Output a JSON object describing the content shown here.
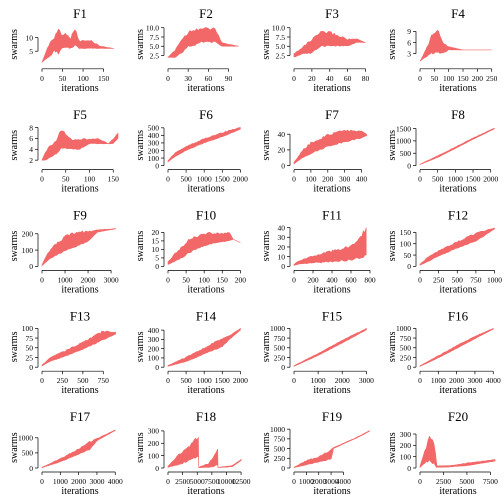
{
  "chart_data": [
    {
      "type": "area",
      "title": "F1",
      "xlabel": "iterations",
      "ylabel": "swarms",
      "xlim": [
        0,
        185
      ],
      "ylim": [
        0,
        15
      ],
      "xticks": [
        0,
        50,
        100,
        150
      ],
      "yticks": [
        5,
        10
      ],
      "x_end": 175,
      "band": [
        [
          0,
          1,
          1
        ],
        [
          10,
          2,
          5
        ],
        [
          20,
          3,
          9
        ],
        [
          30,
          5,
          10
        ],
        [
          40,
          4,
          14
        ],
        [
          50,
          6,
          11
        ],
        [
          60,
          6,
          12
        ],
        [
          70,
          6,
          10
        ],
        [
          80,
          7,
          14
        ],
        [
          90,
          6,
          9
        ],
        [
          110,
          6,
          9
        ],
        [
          120,
          6,
          9
        ],
        [
          140,
          6,
          7
        ],
        [
          175,
          6,
          6
        ]
      ]
    },
    {
      "type": "area",
      "title": "F2",
      "xlabel": "iterations",
      "ylabel": "swarms",
      "xlim": [
        0,
        113
      ],
      "ylim": [
        0,
        11
      ],
      "xticks": [
        0,
        30,
        60,
        90
      ],
      "yticks": [
        2.5,
        5.0,
        7.5,
        10.0
      ],
      "x_end": 105,
      "band": [
        [
          0,
          2,
          2
        ],
        [
          10,
          2,
          4
        ],
        [
          20,
          3,
          7
        ],
        [
          30,
          5,
          9
        ],
        [
          40,
          5,
          10
        ],
        [
          50,
          6,
          10
        ],
        [
          60,
          6,
          10
        ],
        [
          70,
          6,
          10
        ],
        [
          80,
          5,
          6
        ],
        [
          105,
          5,
          5
        ]
      ]
    },
    {
      "type": "area",
      "title": "F3",
      "xlabel": "iterations",
      "ylabel": "swarms",
      "xlim": [
        0,
        85
      ],
      "ylim": [
        0,
        11
      ],
      "xticks": [
        0,
        20,
        40,
        60,
        80
      ],
      "yticks": [
        2.5,
        5.0,
        7.5,
        10.0
      ],
      "x_end": 80,
      "band": [
        [
          0,
          2,
          3
        ],
        [
          10,
          3,
          5
        ],
        [
          20,
          3,
          7
        ],
        [
          30,
          5,
          9
        ],
        [
          40,
          5,
          9
        ],
        [
          50,
          5,
          8
        ],
        [
          60,
          5,
          7
        ],
        [
          70,
          6,
          7
        ],
        [
          80,
          6,
          6
        ]
      ]
    },
    {
      "type": "area",
      "title": "F4",
      "xlabel": "iterations",
      "ylabel": "swarms",
      "xlim": [
        0,
        265
      ],
      "ylim": [
        0,
        11
      ],
      "xticks": [
        0,
        50,
        100,
        150,
        200,
        250
      ],
      "yticks": [
        3,
        6,
        9
      ],
      "x_end": 250,
      "band": [
        [
          0,
          1,
          1
        ],
        [
          20,
          2,
          4
        ],
        [
          40,
          3,
          8
        ],
        [
          60,
          3,
          10
        ],
        [
          80,
          3,
          6
        ],
        [
          100,
          4,
          5
        ],
        [
          150,
          4,
          4
        ],
        [
          250,
          4,
          4
        ]
      ]
    },
    {
      "type": "area",
      "title": "F5",
      "xlabel": "iterations",
      "ylabel": "swarms",
      "xlim": [
        0,
        160
      ],
      "ylim": [
        1,
        8.5
      ],
      "xticks": [
        0,
        50,
        100,
        150
      ],
      "yticks": [
        2,
        4,
        6,
        8
      ],
      "x_end": 160,
      "band": [
        [
          0,
          2,
          2
        ],
        [
          10,
          2,
          4
        ],
        [
          30,
          3,
          6
        ],
        [
          40,
          4,
          8
        ],
        [
          60,
          4,
          6
        ],
        [
          80,
          4,
          6
        ],
        [
          100,
          5,
          6
        ],
        [
          120,
          5,
          6
        ],
        [
          140,
          5,
          5
        ],
        [
          150,
          5,
          6
        ],
        [
          160,
          6,
          7
        ]
      ]
    },
    {
      "type": "area",
      "title": "F6",
      "xlabel": "iterations",
      "ylabel": "swarms",
      "xlim": [
        0,
        2100
      ],
      "ylim": [
        0,
        540
      ],
      "xticks": [
        0,
        500,
        1000,
        1500,
        2000
      ],
      "yticks": [
        0,
        100,
        200,
        300,
        400,
        500
      ],
      "x_end": 2000,
      "band": [
        [
          0,
          50,
          70
        ],
        [
          200,
          120,
          170
        ],
        [
          500,
          200,
          260
        ],
        [
          1000,
          300,
          360
        ],
        [
          1500,
          380,
          440
        ],
        [
          2000,
          480,
          510
        ]
      ]
    },
    {
      "type": "area",
      "title": "F7",
      "xlabel": "iterations",
      "ylabel": "swarms",
      "xlim": [
        0,
        450
      ],
      "ylim": [
        0,
        52
      ],
      "xticks": [
        0,
        100,
        200,
        300,
        400
      ],
      "yticks": [
        0,
        20,
        40
      ],
      "x_end": 430,
      "band": [
        [
          0,
          2,
          4
        ],
        [
          50,
          10,
          20
        ],
        [
          100,
          15,
          30
        ],
        [
          200,
          24,
          40
        ],
        [
          300,
          30,
          46
        ],
        [
          400,
          35,
          44
        ],
        [
          430,
          38,
          40
        ]
      ]
    },
    {
      "type": "area",
      "title": "F8",
      "xlabel": "iterations",
      "ylabel": "swarms",
      "xlim": [
        0,
        2150
      ],
      "ylim": [
        0,
        1650
      ],
      "xticks": [
        0,
        500,
        1000,
        1500,
        2000
      ],
      "yticks": [
        0,
        500,
        1000,
        1500
      ],
      "x_end": 2100,
      "band": [
        [
          0,
          40,
          60
        ],
        [
          500,
          330,
          400
        ],
        [
          1000,
          690,
          760
        ],
        [
          1500,
          1060,
          1120
        ],
        [
          2100,
          1480,
          1520
        ]
      ]
    },
    {
      "type": "area",
      "title": "F9",
      "xlabel": "iterations",
      "ylabel": "swarms",
      "xlim": [
        0,
        3300
      ],
      "ylim": [
        0,
        250
      ],
      "xticks": [
        0,
        1000,
        2000,
        3000
      ],
      "yticks": [
        0,
        100,
        200
      ],
      "x_end": 3200,
      "band": [
        [
          0,
          5,
          10
        ],
        [
          200,
          30,
          70
        ],
        [
          500,
          60,
          130
        ],
        [
          1000,
          90,
          190
        ],
        [
          1500,
          120,
          215
        ],
        [
          2000,
          150,
          220
        ],
        [
          2400,
          210,
          225
        ],
        [
          3200,
          230,
          232
        ]
      ]
    },
    {
      "type": "area",
      "title": "F10",
      "xlabel": "iterations",
      "ylabel": "swarms",
      "xlim": [
        0,
        210
      ],
      "ylim": [
        0,
        24
      ],
      "xticks": [
        0,
        50,
        100,
        150,
        200
      ],
      "yticks": [
        0,
        5,
        10,
        15,
        20
      ],
      "x_end": 200,
      "band": [
        [
          0,
          1,
          3
        ],
        [
          20,
          3,
          8
        ],
        [
          40,
          5,
          12
        ],
        [
          60,
          8,
          17
        ],
        [
          80,
          10,
          18
        ],
        [
          100,
          12,
          20
        ],
        [
          120,
          13,
          20
        ],
        [
          140,
          14,
          20
        ],
        [
          170,
          15,
          20
        ],
        [
          180,
          16,
          16
        ],
        [
          200,
          14,
          14
        ]
      ]
    },
    {
      "type": "area",
      "title": "F11",
      "xlabel": "iterations",
      "ylabel": "swarms",
      "xlim": [
        0,
        800
      ],
      "ylim": [
        0,
        42
      ],
      "xticks": [
        0,
        200,
        400,
        600,
        800
      ],
      "yticks": [
        0,
        10,
        20,
        30,
        40
      ],
      "x_end": 760,
      "band": [
        [
          0,
          1,
          2
        ],
        [
          50,
          2,
          6
        ],
        [
          150,
          3,
          10
        ],
        [
          300,
          4,
          14
        ],
        [
          450,
          5,
          18
        ],
        [
          600,
          6,
          22
        ],
        [
          700,
          8,
          34
        ],
        [
          760,
          10,
          40
        ]
      ]
    },
    {
      "type": "area",
      "title": "F12",
      "xlabel": "iterations",
      "ylabel": "swarms",
      "xlim": [
        0,
        1020
      ],
      "ylim": [
        0,
        180
      ],
      "xticks": [
        0,
        250,
        500,
        750,
        1000
      ],
      "yticks": [
        0,
        50,
        100,
        150
      ],
      "x_end": 1000,
      "band": [
        [
          0,
          5,
          10
        ],
        [
          100,
          20,
          40
        ],
        [
          250,
          45,
          70
        ],
        [
          500,
          80,
          110
        ],
        [
          750,
          110,
          150
        ],
        [
          1000,
          165,
          170
        ]
      ]
    },
    {
      "type": "area",
      "title": "F13",
      "xlabel": "iterations",
      "ylabel": "swarms",
      "xlim": [
        0,
        930
      ],
      "ylim": [
        0,
        105
      ],
      "xticks": [
        0,
        250,
        500,
        750
      ],
      "yticks": [
        0,
        25,
        50,
        75,
        100
      ],
      "x_end": 900,
      "band": [
        [
          0,
          3,
          6
        ],
        [
          100,
          15,
          25
        ],
        [
          250,
          25,
          40
        ],
        [
          500,
          45,
          65
        ],
        [
          750,
          70,
          95
        ],
        [
          900,
          85,
          90
        ]
      ]
    },
    {
      "type": "area",
      "title": "F14",
      "xlabel": "iterations",
      "ylabel": "swarms",
      "xlim": [
        0,
        2100
      ],
      "ylim": [
        0,
        440
      ],
      "xticks": [
        0,
        500,
        1000,
        1500,
        2000
      ],
      "yticks": [
        0,
        100,
        200,
        300,
        400
      ],
      "x_end": 2000,
      "band": [
        [
          0,
          10,
          20
        ],
        [
          500,
          60,
          110
        ],
        [
          1000,
          140,
          210
        ],
        [
          1500,
          220,
          320
        ],
        [
          1700,
          300,
          340
        ],
        [
          2000,
          400,
          420
        ]
      ]
    },
    {
      "type": "area",
      "title": "F15",
      "xlabel": "iterations",
      "ylabel": "swarms",
      "xlim": [
        0,
        3150
      ],
      "ylim": [
        0,
        1050
      ],
      "xticks": [
        0,
        1000,
        2000,
        3000
      ],
      "yticks": [
        0,
        250,
        500,
        750,
        1000
      ],
      "x_end": 3000,
      "band": [
        [
          0,
          20,
          40
        ],
        [
          1000,
          300,
          360
        ],
        [
          2000,
          620,
          700
        ],
        [
          3000,
          960,
          1000
        ]
      ]
    },
    {
      "type": "area",
      "title": "F16",
      "xlabel": "iterations",
      "ylabel": "swarms",
      "xlim": [
        0,
        4150
      ],
      "ylim": [
        0,
        1050
      ],
      "xticks": [
        0,
        1000,
        2000,
        3000,
        4000
      ],
      "yticks": [
        0,
        250,
        500,
        750,
        1000
      ],
      "x_end": 4000,
      "band": [
        [
          0,
          20,
          40
        ],
        [
          1000,
          240,
          300
        ],
        [
          2000,
          480,
          560
        ],
        [
          3000,
          730,
          800
        ],
        [
          4000,
          980,
          1000
        ]
      ]
    },
    {
      "type": "area",
      "title": "F17",
      "xlabel": "iterations",
      "ylabel": "swarms",
      "xlim": [
        0,
        4150
      ],
      "ylim": [
        0,
        1350
      ],
      "xticks": [
        0,
        1000,
        2000,
        3000,
        4000
      ],
      "yticks": [
        0,
        500,
        1000
      ],
      "x_end": 4000,
      "band": [
        [
          0,
          10,
          30
        ],
        [
          1000,
          200,
          320
        ],
        [
          2000,
          450,
          640
        ],
        [
          2600,
          600,
          880
        ],
        [
          3000,
          900,
          980
        ],
        [
          4000,
          1240,
          1260
        ]
      ]
    },
    {
      "type": "area",
      "title": "F18",
      "xlabel": "iterations",
      "ylabel": "swarms",
      "xlim": [
        0,
        13000
      ],
      "ylim": [
        0,
        330
      ],
      "xticks": [
        0,
        2500,
        5000,
        7500,
        10000,
        12500
      ],
      "yticks": [
        0,
        100,
        200,
        300
      ],
      "x_end": 12500,
      "band": [
        [
          0,
          5,
          15
        ],
        [
          2000,
          30,
          120
        ],
        [
          4000,
          60,
          200
        ],
        [
          5200,
          90,
          270
        ],
        [
          5250,
          3,
          6
        ],
        [
          7000,
          5,
          40
        ],
        [
          8000,
          10,
          120
        ],
        [
          8500,
          15,
          160
        ],
        [
          8550,
          3,
          6
        ],
        [
          11000,
          10,
          20
        ],
        [
          12500,
          60,
          70
        ]
      ]
    },
    {
      "type": "area",
      "title": "F19",
      "xlabel": "iterations",
      "ylabel": "swarms",
      "xlim": [
        0,
        6150
      ],
      "ylim": [
        0,
        1050
      ],
      "xticks": [
        0,
        1000,
        2000,
        3000,
        4000
      ],
      "yticks": [
        0,
        250,
        500,
        750,
        1000
      ],
      "x_end": 6100,
      "band": [
        [
          0,
          10,
          20
        ],
        [
          1000,
          80,
          200
        ],
        [
          2000,
          150,
          300
        ],
        [
          3000,
          220,
          500
        ],
        [
          3200,
          500,
          530
        ],
        [
          4000,
          620,
          640
        ],
        [
          5000,
          760,
          780
        ],
        [
          6100,
          940,
          960
        ]
      ]
    },
    {
      "type": "area",
      "title": "F20",
      "xlabel": "iterations",
      "ylabel": "swarms",
      "xlim": [
        0,
        8100
      ],
      "ylim": [
        0,
        360
      ],
      "xticks": [
        0,
        2500,
        5000,
        7500
      ],
      "yticks": [
        0,
        100,
        200,
        300
      ],
      "x_end": 8000,
      "band": [
        [
          0,
          5,
          15
        ],
        [
          500,
          40,
          150
        ],
        [
          1000,
          60,
          280
        ],
        [
          1500,
          30,
          240
        ],
        [
          1800,
          5,
          20
        ],
        [
          3000,
          8,
          20
        ],
        [
          5000,
          20,
          45
        ],
        [
          8000,
          60,
          75
        ]
      ]
    }
  ],
  "colors": {
    "fill": "#f26767",
    "axis": "#000000"
  }
}
